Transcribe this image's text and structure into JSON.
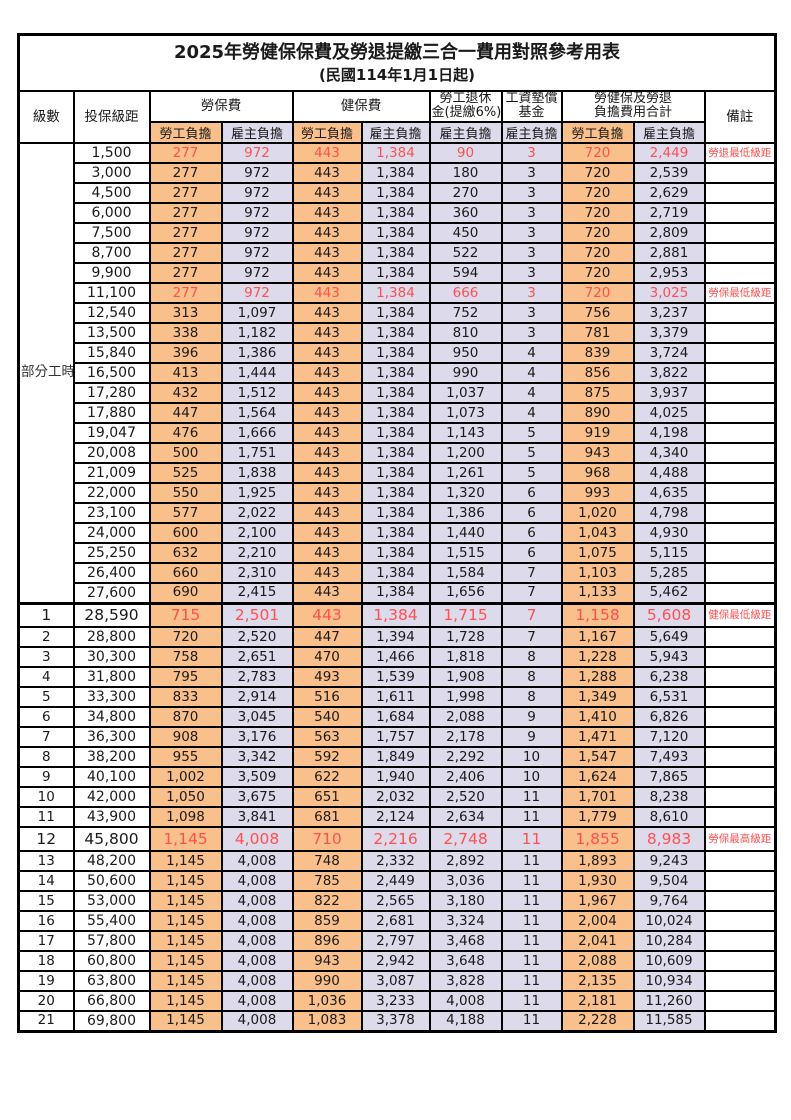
{
  "title": "2025年勞健保保費及勞退提繳三合一費用對照參考用表",
  "subtitle": "(民國114年1月1日起)",
  "colors": {
    "employee_fill": "#FAC08C",
    "employer_fill": "#DDDAEB",
    "highlight_text": "#FF5050",
    "grid_line": "#000000"
  },
  "header": {
    "level": "級數",
    "salary": "投保級距",
    "labor_insurance": "勞保費",
    "health_insurance": "健保費",
    "pension_line1": "勞工退休",
    "pension_line2": "金(提繳6%)",
    "wage_fund_line1": "工資墊償",
    "wage_fund_line2": "基金",
    "total_line1": "勞健保及勞退",
    "total_line2": "負擔費用合計",
    "remark": "備註",
    "employee_label": "勞工負擔",
    "employer_label": "雇主負擔"
  },
  "part_time_label": "部分工時",
  "part_time_rowspan": 23,
  "column_fills": [
    "orange",
    "lav",
    "orange",
    "lav",
    "lav",
    "lav",
    "orange",
    "lav"
  ],
  "rows": [
    {
      "level": "",
      "salary": "1,500",
      "values": [
        "277",
        "972",
        "443",
        "1,384",
        "90",
        "3",
        "720",
        "2,449"
      ],
      "remark": "勞退最低級距",
      "red": true,
      "big": false,
      "section_start": false
    },
    {
      "level": "",
      "salary": "3,000",
      "values": [
        "277",
        "972",
        "443",
        "1,384",
        "180",
        "3",
        "720",
        "2,539"
      ],
      "remark": "",
      "red": false,
      "big": false,
      "section_start": false
    },
    {
      "level": "",
      "salary": "4,500",
      "values": [
        "277",
        "972",
        "443",
        "1,384",
        "270",
        "3",
        "720",
        "2,629"
      ],
      "remark": "",
      "red": false,
      "big": false,
      "section_start": false
    },
    {
      "level": "",
      "salary": "6,000",
      "values": [
        "277",
        "972",
        "443",
        "1,384",
        "360",
        "3",
        "720",
        "2,719"
      ],
      "remark": "",
      "red": false,
      "big": false,
      "section_start": false
    },
    {
      "level": "",
      "salary": "7,500",
      "values": [
        "277",
        "972",
        "443",
        "1,384",
        "450",
        "3",
        "720",
        "2,809"
      ],
      "remark": "",
      "red": false,
      "big": false,
      "section_start": false
    },
    {
      "level": "",
      "salary": "8,700",
      "values": [
        "277",
        "972",
        "443",
        "1,384",
        "522",
        "3",
        "720",
        "2,881"
      ],
      "remark": "",
      "red": false,
      "big": false,
      "section_start": false
    },
    {
      "level": "",
      "salary": "9,900",
      "values": [
        "277",
        "972",
        "443",
        "1,384",
        "594",
        "3",
        "720",
        "2,953"
      ],
      "remark": "",
      "red": false,
      "big": false,
      "section_start": false
    },
    {
      "level": "",
      "salary": "11,100",
      "values": [
        "277",
        "972",
        "443",
        "1,384",
        "666",
        "3",
        "720",
        "3,025"
      ],
      "remark": "勞保最低級距",
      "red": true,
      "big": false,
      "section_start": false
    },
    {
      "level": "",
      "salary": "12,540",
      "values": [
        "313",
        "1,097",
        "443",
        "1,384",
        "752",
        "3",
        "756",
        "3,237"
      ],
      "remark": "",
      "red": false,
      "big": false,
      "section_start": false
    },
    {
      "level": "",
      "salary": "13,500",
      "values": [
        "338",
        "1,182",
        "443",
        "1,384",
        "810",
        "3",
        "781",
        "3,379"
      ],
      "remark": "",
      "red": false,
      "big": false,
      "section_start": false
    },
    {
      "level": "",
      "salary": "15,840",
      "values": [
        "396",
        "1,386",
        "443",
        "1,384",
        "950",
        "4",
        "839",
        "3,724"
      ],
      "remark": "",
      "red": false,
      "big": false,
      "section_start": false
    },
    {
      "level": "",
      "salary": "16,500",
      "values": [
        "413",
        "1,444",
        "443",
        "1,384",
        "990",
        "4",
        "856",
        "3,822"
      ],
      "remark": "",
      "red": false,
      "big": false,
      "section_start": false
    },
    {
      "level": "",
      "salary": "17,280",
      "values": [
        "432",
        "1,512",
        "443",
        "1,384",
        "1,037",
        "4",
        "875",
        "3,937"
      ],
      "remark": "",
      "red": false,
      "big": false,
      "section_start": false
    },
    {
      "level": "",
      "salary": "17,880",
      "values": [
        "447",
        "1,564",
        "443",
        "1,384",
        "1,073",
        "4",
        "890",
        "4,025"
      ],
      "remark": "",
      "red": false,
      "big": false,
      "section_start": false
    },
    {
      "level": "",
      "salary": "19,047",
      "values": [
        "476",
        "1,666",
        "443",
        "1,384",
        "1,143",
        "5",
        "919",
        "4,198"
      ],
      "remark": "",
      "red": false,
      "big": false,
      "section_start": false
    },
    {
      "level": "",
      "salary": "20,008",
      "values": [
        "500",
        "1,751",
        "443",
        "1,384",
        "1,200",
        "5",
        "943",
        "4,340"
      ],
      "remark": "",
      "red": false,
      "big": false,
      "section_start": false
    },
    {
      "level": "",
      "salary": "21,009",
      "values": [
        "525",
        "1,838",
        "443",
        "1,384",
        "1,261",
        "5",
        "968",
        "4,488"
      ],
      "remark": "",
      "red": false,
      "big": false,
      "section_start": false
    },
    {
      "level": "",
      "salary": "22,000",
      "values": [
        "550",
        "1,925",
        "443",
        "1,384",
        "1,320",
        "6",
        "993",
        "4,635"
      ],
      "remark": "",
      "red": false,
      "big": false,
      "section_start": false
    },
    {
      "level": "",
      "salary": "23,100",
      "values": [
        "577",
        "2,022",
        "443",
        "1,384",
        "1,386",
        "6",
        "1,020",
        "4,798"
      ],
      "remark": "",
      "red": false,
      "big": false,
      "section_start": false
    },
    {
      "level": "",
      "salary": "24,000",
      "values": [
        "600",
        "2,100",
        "443",
        "1,384",
        "1,440",
        "6",
        "1,043",
        "4,930"
      ],
      "remark": "",
      "red": false,
      "big": false,
      "section_start": false
    },
    {
      "level": "",
      "salary": "25,250",
      "values": [
        "632",
        "2,210",
        "443",
        "1,384",
        "1,515",
        "6",
        "1,075",
        "5,115"
      ],
      "remark": "",
      "red": false,
      "big": false,
      "section_start": false
    },
    {
      "level": "",
      "salary": "26,400",
      "values": [
        "660",
        "2,310",
        "443",
        "1,384",
        "1,584",
        "7",
        "1,103",
        "5,285"
      ],
      "remark": "",
      "red": false,
      "big": false,
      "section_start": false
    },
    {
      "level": "",
      "salary": "27,600",
      "values": [
        "690",
        "2,415",
        "443",
        "1,384",
        "1,656",
        "7",
        "1,133",
        "5,462"
      ],
      "remark": "",
      "red": false,
      "big": false,
      "section_start": false
    },
    {
      "level": "1",
      "salary": "28,590",
      "values": [
        "715",
        "2,501",
        "443",
        "1,384",
        "1,715",
        "7",
        "1,158",
        "5,608"
      ],
      "remark": "健保最低級距",
      "red": true,
      "big": true,
      "section_start": true
    },
    {
      "level": "2",
      "salary": "28,800",
      "values": [
        "720",
        "2,520",
        "447",
        "1,394",
        "1,728",
        "7",
        "1,167",
        "5,649"
      ],
      "remark": "",
      "red": false,
      "big": false,
      "section_start": false
    },
    {
      "level": "3",
      "salary": "30,300",
      "values": [
        "758",
        "2,651",
        "470",
        "1,466",
        "1,818",
        "8",
        "1,228",
        "5,943"
      ],
      "remark": "",
      "red": false,
      "big": false,
      "section_start": false
    },
    {
      "level": "4",
      "salary": "31,800",
      "values": [
        "795",
        "2,783",
        "493",
        "1,539",
        "1,908",
        "8",
        "1,288",
        "6,238"
      ],
      "remark": "",
      "red": false,
      "big": false,
      "section_start": false
    },
    {
      "level": "5",
      "salary": "33,300",
      "values": [
        "833",
        "2,914",
        "516",
        "1,611",
        "1,998",
        "8",
        "1,349",
        "6,531"
      ],
      "remark": "",
      "red": false,
      "big": false,
      "section_start": false
    },
    {
      "level": "6",
      "salary": "34,800",
      "values": [
        "870",
        "3,045",
        "540",
        "1,684",
        "2,088",
        "9",
        "1,410",
        "6,826"
      ],
      "remark": "",
      "red": false,
      "big": false,
      "section_start": false
    },
    {
      "level": "7",
      "salary": "36,300",
      "values": [
        "908",
        "3,176",
        "563",
        "1,757",
        "2,178",
        "9",
        "1,471",
        "7,120"
      ],
      "remark": "",
      "red": false,
      "big": false,
      "section_start": false
    },
    {
      "level": "8",
      "salary": "38,200",
      "values": [
        "955",
        "3,342",
        "592",
        "1,849",
        "2,292",
        "10",
        "1,547",
        "7,493"
      ],
      "remark": "",
      "red": false,
      "big": false,
      "section_start": false
    },
    {
      "level": "9",
      "salary": "40,100",
      "values": [
        "1,002",
        "3,509",
        "622",
        "1,940",
        "2,406",
        "10",
        "1,624",
        "7,865"
      ],
      "remark": "",
      "red": false,
      "big": false,
      "section_start": false
    },
    {
      "level": "10",
      "salary": "42,000",
      "values": [
        "1,050",
        "3,675",
        "651",
        "2,032",
        "2,520",
        "11",
        "1,701",
        "8,238"
      ],
      "remark": "",
      "red": false,
      "big": false,
      "section_start": false
    },
    {
      "level": "11",
      "salary": "43,900",
      "values": [
        "1,098",
        "3,841",
        "681",
        "2,124",
        "2,634",
        "11",
        "1,779",
        "8,610"
      ],
      "remark": "",
      "red": false,
      "big": false,
      "section_start": false
    },
    {
      "level": "12",
      "salary": "45,800",
      "values": [
        "1,145",
        "4,008",
        "710",
        "2,216",
        "2,748",
        "11",
        "1,855",
        "8,983"
      ],
      "remark": "勞保最高級距",
      "red": true,
      "big": true,
      "section_start": false
    },
    {
      "level": "13",
      "salary": "48,200",
      "values": [
        "1,145",
        "4,008",
        "748",
        "2,332",
        "2,892",
        "11",
        "1,893",
        "9,243"
      ],
      "remark": "",
      "red": false,
      "big": false,
      "section_start": false
    },
    {
      "level": "14",
      "salary": "50,600",
      "values": [
        "1,145",
        "4,008",
        "785",
        "2,449",
        "3,036",
        "11",
        "1,930",
        "9,504"
      ],
      "remark": "",
      "red": false,
      "big": false,
      "section_start": false
    },
    {
      "level": "15",
      "salary": "53,000",
      "values": [
        "1,145",
        "4,008",
        "822",
        "2,565",
        "3,180",
        "11",
        "1,967",
        "9,764"
      ],
      "remark": "",
      "red": false,
      "big": false,
      "section_start": false
    },
    {
      "level": "16",
      "salary": "55,400",
      "values": [
        "1,145",
        "4,008",
        "859",
        "2,681",
        "3,324",
        "11",
        "2,004",
        "10,024"
      ],
      "remark": "",
      "red": false,
      "big": false,
      "section_start": false
    },
    {
      "level": "17",
      "salary": "57,800",
      "values": [
        "1,145",
        "4,008",
        "896",
        "2,797",
        "3,468",
        "11",
        "2,041",
        "10,284"
      ],
      "remark": "",
      "red": false,
      "big": false,
      "section_start": false
    },
    {
      "level": "18",
      "salary": "60,800",
      "values": [
        "1,145",
        "4,008",
        "943",
        "2,942",
        "3,648",
        "11",
        "2,088",
        "10,609"
      ],
      "remark": "",
      "red": false,
      "big": false,
      "section_start": false
    },
    {
      "level": "19",
      "salary": "63,800",
      "values": [
        "1,145",
        "4,008",
        "990",
        "3,087",
        "3,828",
        "11",
        "2,135",
        "10,934"
      ],
      "remark": "",
      "red": false,
      "big": false,
      "section_start": false
    },
    {
      "level": "20",
      "salary": "66,800",
      "values": [
        "1,145",
        "4,008",
        "1,036",
        "3,233",
        "4,008",
        "11",
        "2,181",
        "11,260"
      ],
      "remark": "",
      "red": false,
      "big": false,
      "section_start": false
    },
    {
      "level": "21",
      "salary": "69,800",
      "values": [
        "1,145",
        "4,008",
        "1,083",
        "3,378",
        "4,188",
        "11",
        "2,228",
        "11,585"
      ],
      "remark": "",
      "red": false,
      "big": false,
      "section_start": false
    }
  ]
}
